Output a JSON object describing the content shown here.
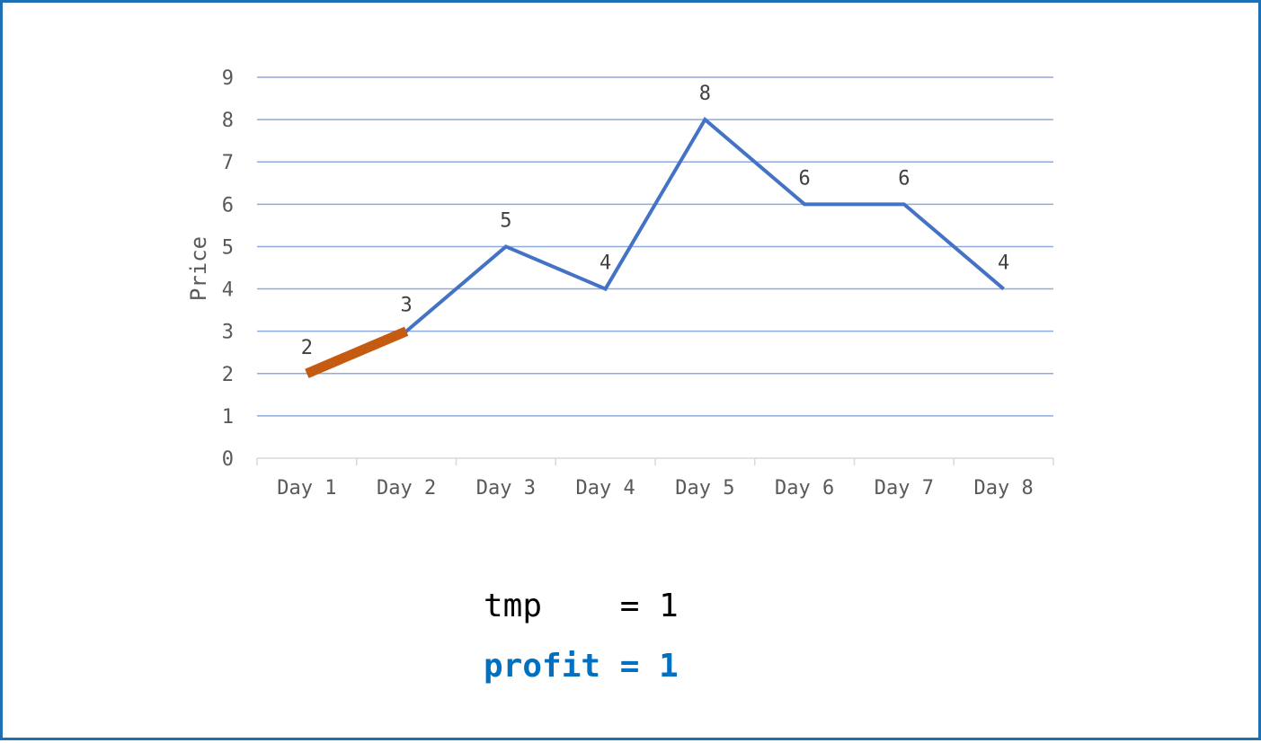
{
  "chart_data": {
    "type": "line",
    "categories": [
      "Day 1",
      "Day 2",
      "Day 3",
      "Day 4",
      "Day 5",
      "Day 6",
      "Day 7",
      "Day 8"
    ],
    "series": [
      {
        "values": [
          2,
          3,
          5,
          4,
          8,
          6,
          6,
          4
        ],
        "color": "#4472c4"
      }
    ],
    "highlight": {
      "from_index": 0,
      "to_index": 1,
      "color": "#c55a11"
    },
    "data_labels": [
      "2",
      "3",
      "5",
      "4",
      "8",
      "6",
      "6",
      "4"
    ],
    "y_ticks": [
      "0",
      "1",
      "2",
      "3",
      "4",
      "5",
      "6",
      "7",
      "8",
      "9"
    ],
    "ylim": [
      0,
      9
    ],
    "ylabel": "Price",
    "xlabel": "",
    "grid": true,
    "gridline_color": "#8faadc",
    "axis_color": "#d9d9d9"
  },
  "variables": {
    "tmp_label": "tmp    = 1",
    "profit_label": "profit = 1",
    "profit_color": "#0070c0"
  }
}
